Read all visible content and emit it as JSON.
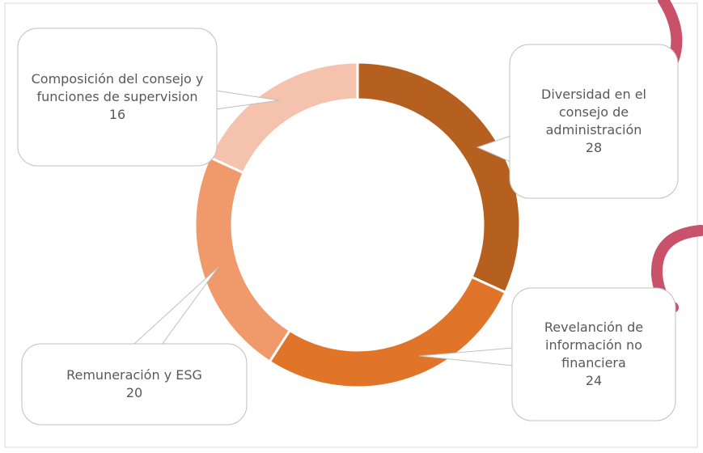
{
  "chart_data": {
    "type": "donut",
    "categories": [
      "Diversidad en el consejo de administración",
      "Revelanción de información no financiera",
      "Remuneración y ESG",
      "Composición del consejo y funciones de supervision"
    ],
    "values": [
      28,
      24,
      20,
      16
    ],
    "colors": [
      "#b5601f",
      "#e07428",
      "#f0996a",
      "#f5c2ae"
    ]
  }
}
